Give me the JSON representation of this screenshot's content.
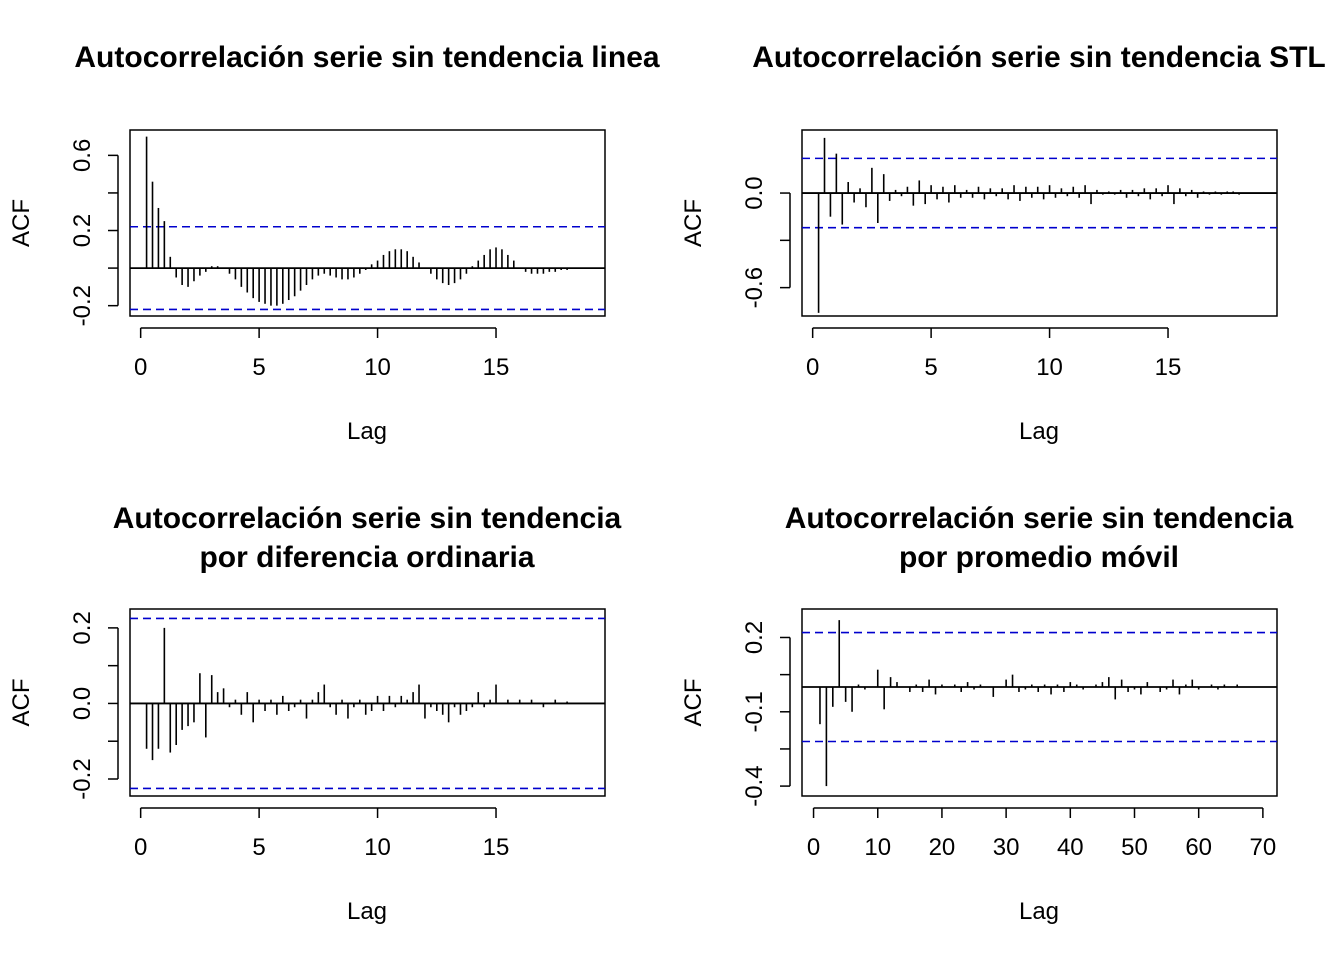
{
  "colors": {
    "conf_band": "#0000cd",
    "bars": "#000000",
    "frame": "#000000"
  },
  "chart_data": [
    {
      "type": "bar",
      "title": "Autocorrelación serie sin tendencia linea",
      "xlabel": "Lag",
      "ylabel": "ACF",
      "xlim": [
        -0.45,
        19.6
      ],
      "ylim": [
        -0.255,
        0.735
      ],
      "xticks": [
        0,
        5,
        10,
        15
      ],
      "yticks": [
        -0.2,
        0.2,
        0.6
      ],
      "ytick_labels": [
        "-0.2",
        "0.2",
        "0.6"
      ],
      "conf_band": [
        0.22,
        -0.22
      ],
      "lags": [
        0.25,
        0.5,
        0.75,
        1,
        1.25,
        1.5,
        1.75,
        2,
        2.25,
        2.5,
        2.75,
        3,
        3.25,
        3.5,
        3.75,
        4,
        4.25,
        4.5,
        4.75,
        5,
        5.25,
        5.5,
        5.75,
        6,
        6.25,
        6.5,
        6.75,
        7,
        7.25,
        7.5,
        7.75,
        8,
        8.25,
        8.5,
        8.75,
        9,
        9.25,
        9.5,
        9.75,
        10,
        10.25,
        10.5,
        10.75,
        11,
        11.25,
        11.5,
        11.75,
        12,
        12.25,
        12.5,
        12.75,
        13,
        13.25,
        13.5,
        13.75,
        14,
        14.25,
        14.5,
        14.75,
        15,
        15.25,
        15.5,
        15.75,
        16,
        16.25,
        16.5,
        16.75,
        17,
        17.25,
        17.5,
        17.75,
        18
      ],
      "values": [
        0.7,
        0.46,
        0.32,
        0.25,
        0.06,
        -0.05,
        -0.09,
        -0.1,
        -0.07,
        -0.04,
        -0.02,
        0.01,
        0.01,
        0.0,
        -0.03,
        -0.06,
        -0.1,
        -0.13,
        -0.16,
        -0.18,
        -0.19,
        -0.2,
        -0.2,
        -0.19,
        -0.17,
        -0.15,
        -0.12,
        -0.09,
        -0.06,
        -0.04,
        -0.03,
        -0.04,
        -0.05,
        -0.06,
        -0.06,
        -0.05,
        -0.03,
        -0.01,
        0.02,
        0.04,
        0.07,
        0.09,
        0.1,
        0.1,
        0.09,
        0.06,
        0.03,
        0.0,
        -0.03,
        -0.06,
        -0.08,
        -0.09,
        -0.08,
        -0.06,
        -0.03,
        0.01,
        0.04,
        0.07,
        0.1,
        0.11,
        0.1,
        0.07,
        0.04,
        0.0,
        -0.02,
        -0.03,
        -0.03,
        -0.03,
        -0.02,
        -0.02,
        -0.01,
        -0.01
      ]
    },
    {
      "type": "bar",
      "title": "Autocorrelación serie sin tendencia STL",
      "xlabel": "Lag",
      "ylabel": "ACF",
      "xlim": [
        -0.45,
        19.6
      ],
      "ylim": [
        -0.78,
        0.4
      ],
      "xticks": [
        0,
        5,
        10,
        15
      ],
      "yticks": [
        -0.6,
        0.0
      ],
      "ytick_labels": [
        "-0.6",
        "0.0"
      ],
      "conf_band": [
        0.22,
        -0.22
      ],
      "lags": [
        0.25,
        0.5,
        0.75,
        1,
        1.25,
        1.5,
        1.75,
        2,
        2.25,
        2.5,
        2.75,
        3,
        3.25,
        3.5,
        3.75,
        4,
        4.25,
        4.5,
        4.75,
        5,
        5.25,
        5.5,
        5.75,
        6,
        6.25,
        6.5,
        6.75,
        7,
        7.25,
        7.5,
        7.75,
        8,
        8.25,
        8.5,
        8.75,
        9,
        9.25,
        9.5,
        9.75,
        10,
        10.25,
        10.5,
        10.75,
        11,
        11.25,
        11.5,
        11.75,
        12,
        12.25,
        12.5,
        12.75,
        13,
        13.25,
        13.5,
        13.75,
        14,
        14.25,
        14.5,
        14.75,
        15,
        15.25,
        15.5,
        15.75,
        16,
        16.25,
        16.5,
        16.75,
        17,
        17.25,
        17.5,
        17.75,
        18
      ],
      "values": [
        -0.76,
        0.35,
        -0.15,
        0.25,
        -0.2,
        0.07,
        -0.06,
        0.03,
        -0.09,
        0.16,
        -0.19,
        0.12,
        -0.05,
        0.02,
        -0.02,
        0.04,
        -0.08,
        0.08,
        -0.07,
        0.05,
        -0.04,
        0.04,
        -0.06,
        0.05,
        -0.03,
        0.02,
        -0.03,
        0.04,
        -0.04,
        0.03,
        -0.02,
        0.03,
        -0.04,
        0.05,
        -0.05,
        0.04,
        -0.03,
        0.04,
        -0.04,
        0.05,
        -0.03,
        0.03,
        -0.02,
        0.04,
        -0.03,
        0.05,
        -0.07,
        0.02,
        -0.01,
        0.01,
        -0.01,
        0.02,
        -0.03,
        0.02,
        -0.02,
        0.03,
        -0.04,
        0.03,
        -0.02,
        0.05,
        -0.07,
        0.03,
        -0.02,
        0.02,
        -0.03,
        0.01,
        -0.01,
        0.01,
        -0.01,
        0.01,
        0.01,
        -0.01
      ]
    },
    {
      "type": "bar",
      "title": "Autocorrelación serie sin tendencia",
      "subtitle": "por diferencia ordinaria",
      "xlabel": "Lag",
      "ylabel": "ACF",
      "xlim": [
        -0.45,
        19.6
      ],
      "ylim": [
        -0.245,
        0.25
      ],
      "xticks": [
        0,
        5,
        10,
        15
      ],
      "yticks": [
        -0.2,
        0.0,
        0.2
      ],
      "ytick_labels": [
        "-0.2",
        "0.0",
        "0.2"
      ],
      "conf_band": [
        0.225,
        -0.225
      ],
      "lags": [
        0.25,
        0.5,
        0.75,
        1,
        1.25,
        1.5,
        1.75,
        2,
        2.25,
        2.5,
        2.75,
        3,
        3.25,
        3.5,
        3.75,
        4,
        4.25,
        4.5,
        4.75,
        5,
        5.25,
        5.5,
        5.75,
        6,
        6.25,
        6.5,
        6.75,
        7,
        7.25,
        7.5,
        7.75,
        8,
        8.25,
        8.5,
        8.75,
        9,
        9.25,
        9.5,
        9.75,
        10,
        10.25,
        10.5,
        10.75,
        11,
        11.25,
        11.5,
        11.75,
        12,
        12.25,
        12.5,
        12.75,
        13,
        13.25,
        13.5,
        13.75,
        14,
        14.25,
        14.5,
        14.75,
        15,
        15.25,
        15.5,
        15.75,
        16,
        16.25,
        16.5,
        16.75,
        17,
        17.25,
        17.5,
        17.75,
        18
      ],
      "values": [
        -0.12,
        -0.15,
        -0.12,
        0.2,
        -0.13,
        -0.11,
        -0.07,
        -0.06,
        -0.05,
        0.08,
        -0.09,
        0.075,
        0.03,
        0.04,
        -0.01,
        0.01,
        -0.03,
        0.03,
        -0.05,
        0.01,
        -0.02,
        0.01,
        -0.03,
        0.02,
        -0.02,
        -0.01,
        0.01,
        -0.04,
        0.01,
        0.03,
        0.05,
        -0.01,
        -0.03,
        0.01,
        -0.04,
        -0.01,
        0.01,
        -0.03,
        -0.02,
        0.02,
        -0.02,
        0.02,
        -0.01,
        0.02,
        0.01,
        0.03,
        0.05,
        -0.04,
        -0.01,
        -0.02,
        -0.03,
        -0.05,
        -0.01,
        -0.03,
        -0.02,
        -0.01,
        0.03,
        -0.01,
        0.01,
        0.05,
        0.0,
        0.01,
        0.0,
        0.01,
        0.0,
        0.01,
        0.0,
        -0.01,
        0.0,
        0.01,
        0.0,
        0.005
      ]
    },
    {
      "type": "bar",
      "title": "Autocorrelación serie sin tendencia",
      "subtitle": "por promedio móvil",
      "xlabel": "Lag",
      "ylabel": "ACF",
      "xlim": [
        -1.8,
        72.2
      ],
      "ylim": [
        -0.44,
        0.315
      ],
      "xticks": [
        0,
        10,
        20,
        30,
        40,
        50,
        60,
        70
      ],
      "yticks": [
        -0.4,
        -0.1,
        0.2
      ],
      "ytick_labels": [
        "-0.4",
        "-0.1",
        "0.2"
      ],
      "conf_band": [
        0.22,
        -0.22
      ],
      "lags": [
        1,
        2,
        3,
        4,
        5,
        6,
        7,
        8,
        9,
        10,
        11,
        12,
        13,
        14,
        15,
        16,
        17,
        18,
        19,
        20,
        21,
        22,
        23,
        24,
        25,
        26,
        27,
        28,
        29,
        30,
        31,
        32,
        33,
        34,
        35,
        36,
        37,
        38,
        39,
        40,
        41,
        42,
        43,
        44,
        45,
        46,
        47,
        48,
        49,
        50,
        51,
        52,
        53,
        54,
        55,
        56,
        57,
        58,
        59,
        60,
        61,
        62,
        63,
        64,
        65,
        66,
        67
      ],
      "values": [
        -0.15,
        -0.4,
        -0.08,
        0.27,
        -0.06,
        -0.1,
        0.01,
        -0.01,
        0.0,
        0.07,
        -0.09,
        0.04,
        0.02,
        0.0,
        -0.02,
        0.01,
        -0.02,
        0.03,
        -0.03,
        0.01,
        0.0,
        0.01,
        -0.02,
        0.02,
        -0.01,
        0.01,
        0.0,
        -0.04,
        0.0,
        0.03,
        0.05,
        -0.02,
        -0.01,
        0.01,
        -0.02,
        0.01,
        -0.03,
        0.01,
        -0.02,
        0.02,
        0.01,
        -0.01,
        0.0,
        0.01,
        0.02,
        0.04,
        -0.05,
        0.03,
        -0.02,
        -0.01,
        -0.03,
        0.02,
        0.0,
        -0.02,
        -0.01,
        0.03,
        -0.03,
        0.01,
        0.03,
        -0.01,
        0.0,
        0.01,
        -0.01,
        0.01,
        0.0,
        0.01,
        0.0
      ]
    }
  ]
}
